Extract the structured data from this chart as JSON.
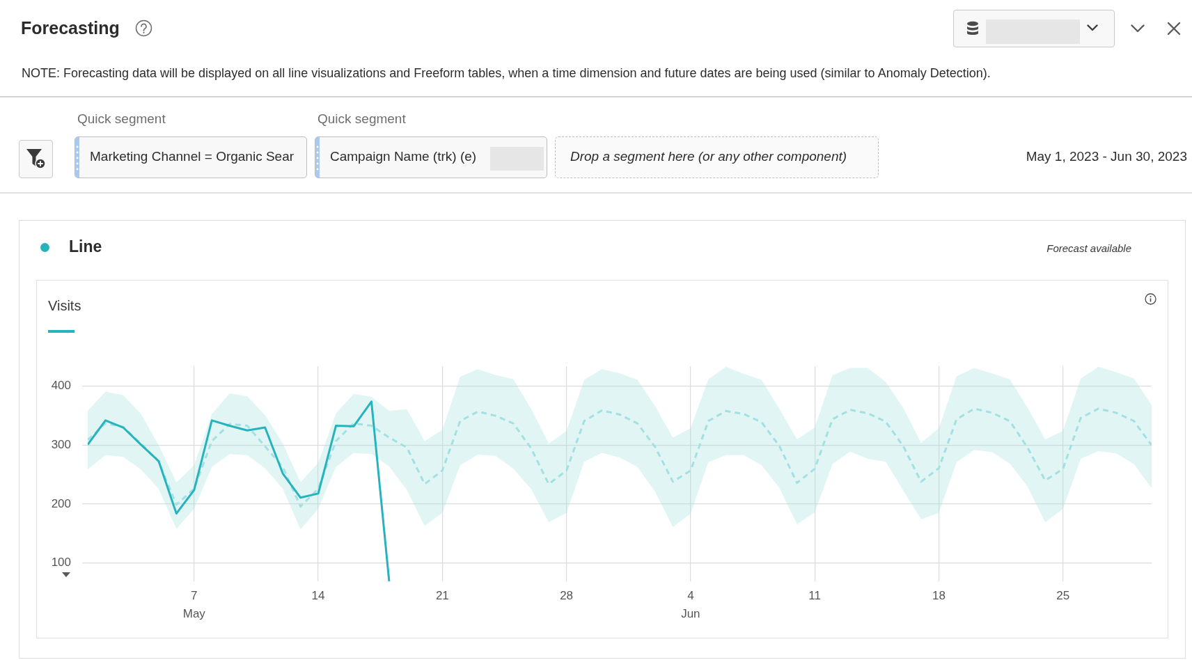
{
  "chart_data": {
    "type": "line",
    "title": "Forecasting",
    "subtitle": "NOTE: Forecasting data will be displayed on all line visualizations and Freeform tables, when a time dimension and future dates are being used (similar to Anomaly Detection).",
    "annotations": [
      "Quick segment",
      "Marketing Channel = Organic Sear",
      "Quick segment",
      "Campaign Name (trk) (e)",
      "Drop a segment here (or any other component)",
      "May 1, 2023 - Jun 30, 2023",
      "Line",
      "Forecast available"
    ],
    "x": [
      "2023-05-01",
      "2023-05-02",
      "2023-05-03",
      "2023-05-04",
      "2023-05-05",
      "2023-05-06",
      "2023-05-07",
      "2023-05-08",
      "2023-05-09",
      "2023-05-10",
      "2023-05-11",
      "2023-05-12",
      "2023-05-13",
      "2023-05-14",
      "2023-05-15",
      "2023-05-16",
      "2023-05-17",
      "2023-05-18",
      "2023-05-19",
      "2023-05-20",
      "2023-05-21",
      "2023-05-22",
      "2023-05-23",
      "2023-05-24",
      "2023-05-25",
      "2023-05-26",
      "2023-05-27",
      "2023-05-28",
      "2023-05-29",
      "2023-05-30",
      "2023-05-31",
      "2023-06-01",
      "2023-06-02",
      "2023-06-03",
      "2023-06-04",
      "2023-06-05",
      "2023-06-06",
      "2023-06-07",
      "2023-06-08",
      "2023-06-09",
      "2023-06-10",
      "2023-06-11",
      "2023-06-12",
      "2023-06-13",
      "2023-06-14",
      "2023-06-15",
      "2023-06-16",
      "2023-06-17",
      "2023-06-18",
      "2023-06-19",
      "2023-06-20",
      "2023-06-21",
      "2023-06-22",
      "2023-06-23",
      "2023-06-24",
      "2023-06-25",
      "2023-06-26",
      "2023-06-27",
      "2023-06-28",
      "2023-06-29",
      "2023-06-30"
    ],
    "xlim": [
      "2023-05-01",
      "2023-06-30"
    ],
    "xticks": [
      {
        "value": "2023-05-07",
        "label": "7\nMay"
      },
      {
        "value": "2023-05-14",
        "label": "14"
      },
      {
        "value": "2023-05-21",
        "label": "21"
      },
      {
        "value": "2023-05-28",
        "label": "28"
      },
      {
        "value": "2023-06-04",
        "label": "4\nJun"
      },
      {
        "value": "2023-06-11",
        "label": "11"
      },
      {
        "value": "2023-06-18",
        "label": "18"
      },
      {
        "value": "2023-06-25",
        "label": "25"
      }
    ],
    "ylim": [
      69,
      434
    ],
    "yticks": [
      100,
      200,
      300,
      400
    ],
    "grid": true,
    "legend": "top left",
    "marker": "none",
    "series": [
      {
        "name": "Visits",
        "color": "#26b3bd",
        "values": [
          301,
          342,
          330,
          301,
          273,
          184,
          224,
          342,
          333,
          325,
          330,
          252,
          211,
          218,
          333,
          332,
          374,
          69,
          null,
          null,
          null,
          null,
          null,
          null,
          null,
          null,
          null,
          null,
          null,
          null,
          null,
          null,
          null,
          null,
          null,
          null,
          null,
          null,
          null,
          null,
          null,
          null,
          null,
          null,
          null,
          null,
          null,
          null,
          null,
          null,
          null,
          null,
          null,
          null,
          null,
          null,
          null,
          null,
          null,
          null,
          null
        ]
      },
      {
        "color": "#a3e0e2",
        "line_style": "dashed",
        "values": [
          309,
          337,
          331,
          303,
          272,
          199,
          226,
          307,
          336,
          333,
          298,
          263,
          196,
          226,
          307,
          337,
          333,
          313,
          296,
          234,
          257,
          341,
          357,
          350,
          337,
          295,
          234,
          257,
          341,
          359,
          352,
          337,
          297,
          238,
          257,
          341,
          358,
          353,
          339,
          299,
          236,
          260,
          344,
          360,
          354,
          340,
          298,
          238,
          261,
          344,
          362,
          355,
          341,
          296,
          240,
          260,
          346,
          362,
          355,
          341,
          300
        ],
        "lower": [
          259,
          283,
          280,
          259,
          226,
          158,
          192,
          263,
          285,
          283,
          261,
          226,
          157,
          192,
          263,
          287,
          285,
          264,
          224,
          163,
          185,
          266,
          284,
          282,
          260,
          226,
          169,
          185,
          272,
          287,
          279,
          263,
          221,
          161,
          184,
          271,
          283,
          283,
          266,
          228,
          166,
          186,
          268,
          289,
          277,
          272,
          223,
          174,
          185,
          271,
          292,
          288,
          269,
          230,
          169,
          192,
          277,
          290,
          286,
          268,
          227
        ],
        "upper": [
          358,
          391,
          385,
          353,
          300,
          237,
          266,
          353,
          388,
          383,
          351,
          303,
          237,
          270,
          354,
          387,
          382,
          358,
          361,
          307,
          326,
          416,
          429,
          419,
          412,
          362,
          303,
          324,
          411,
          429,
          422,
          411,
          366,
          313,
          329,
          412,
          433,
          421,
          411,
          362,
          310,
          330,
          419,
          431,
          431,
          407,
          363,
          304,
          329,
          417,
          431,
          422,
          412,
          364,
          310,
          324,
          413,
          433,
          424,
          413,
          368
        ]
      }
    ]
  }
}
